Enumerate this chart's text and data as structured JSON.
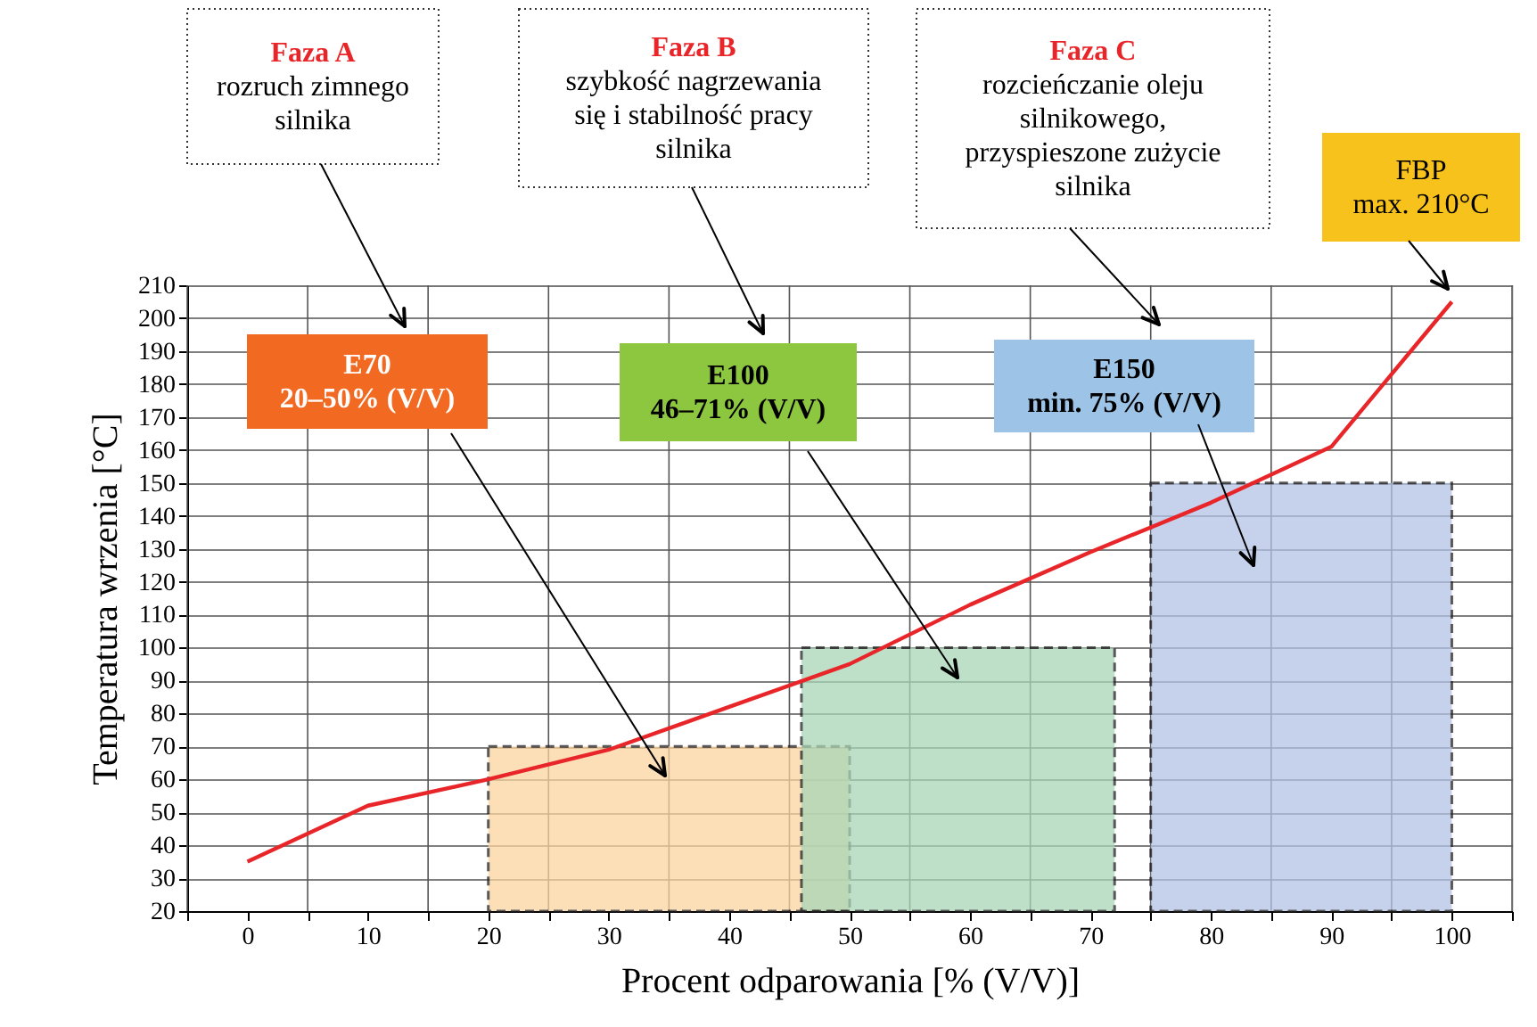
{
  "chart_data": {
    "type": "line",
    "xlabel": "Procent odparowania [% (V/V)]",
    "ylabel": "Temperatura wrzenia [°C]",
    "xlim": [
      -5,
      105
    ],
    "ylim": [
      20,
      210
    ],
    "xticks": [
      {
        "value": -5,
        "label": null
      },
      0,
      {
        "value": 5,
        "label": null
      },
      10,
      {
        "value": 15,
        "label": null
      },
      20,
      {
        "value": 25,
        "label": null
      },
      30,
      {
        "value": 35,
        "label": null
      },
      40,
      {
        "value": 45,
        "label": null
      },
      50,
      {
        "value": 55,
        "label": null
      },
      60,
      {
        "value": 65,
        "label": null
      },
      70,
      {
        "value": 75,
        "label": null
      },
      80,
      {
        "value": 85,
        "label": null
      },
      90,
      {
        "value": 95,
        "label": null
      },
      100,
      {
        "value": 105,
        "label": null
      }
    ],
    "yticks": [
      20,
      30,
      40,
      50,
      60,
      70,
      80,
      90,
      100,
      110,
      120,
      130,
      140,
      150,
      160,
      170,
      180,
      190,
      200,
      210
    ],
    "grid": true,
    "series": [
      {
        "color": "#e8262a",
        "x": [
          0,
          10,
          20,
          30,
          40,
          50,
          60,
          70,
          80,
          90,
          100
        ],
        "values": [
          35,
          52,
          60,
          69,
          82,
          95,
          113,
          129,
          144,
          161,
          205
        ]
      },
      {
        "type": "area",
        "color": "#fbd3a0",
        "line_style": "dashed",
        "x": [
          20,
          50
        ],
        "values": [
          70,
          70
        ]
      },
      {
        "type": "area",
        "color": "#a9d6b6",
        "line_style": "dashed",
        "x": [
          46,
          72
        ],
        "values": [
          100,
          100
        ]
      },
      {
        "type": "area",
        "color": "#b3c2e6",
        "line_style": "dashed",
        "x": [
          75,
          100
        ],
        "values": [
          150,
          150
        ]
      }
    ],
    "annotations": [
      "Faza A\nrozruch zimnego\nsilnika",
      "Faza B\nszybkość nagrzewania\nsię i stabilność pracy\nsilnika",
      "Faza C\nrozcieńczanie oleju\nsilnikowego,\nprzyspieszone zużycie\nsilnika",
      "FBP\nmax. 210°C",
      "E70\n20–50% (V/V)",
      "E100\n46–71% (V/V)",
      "E150\nmin. 75% (V/V)"
    ]
  }
}
